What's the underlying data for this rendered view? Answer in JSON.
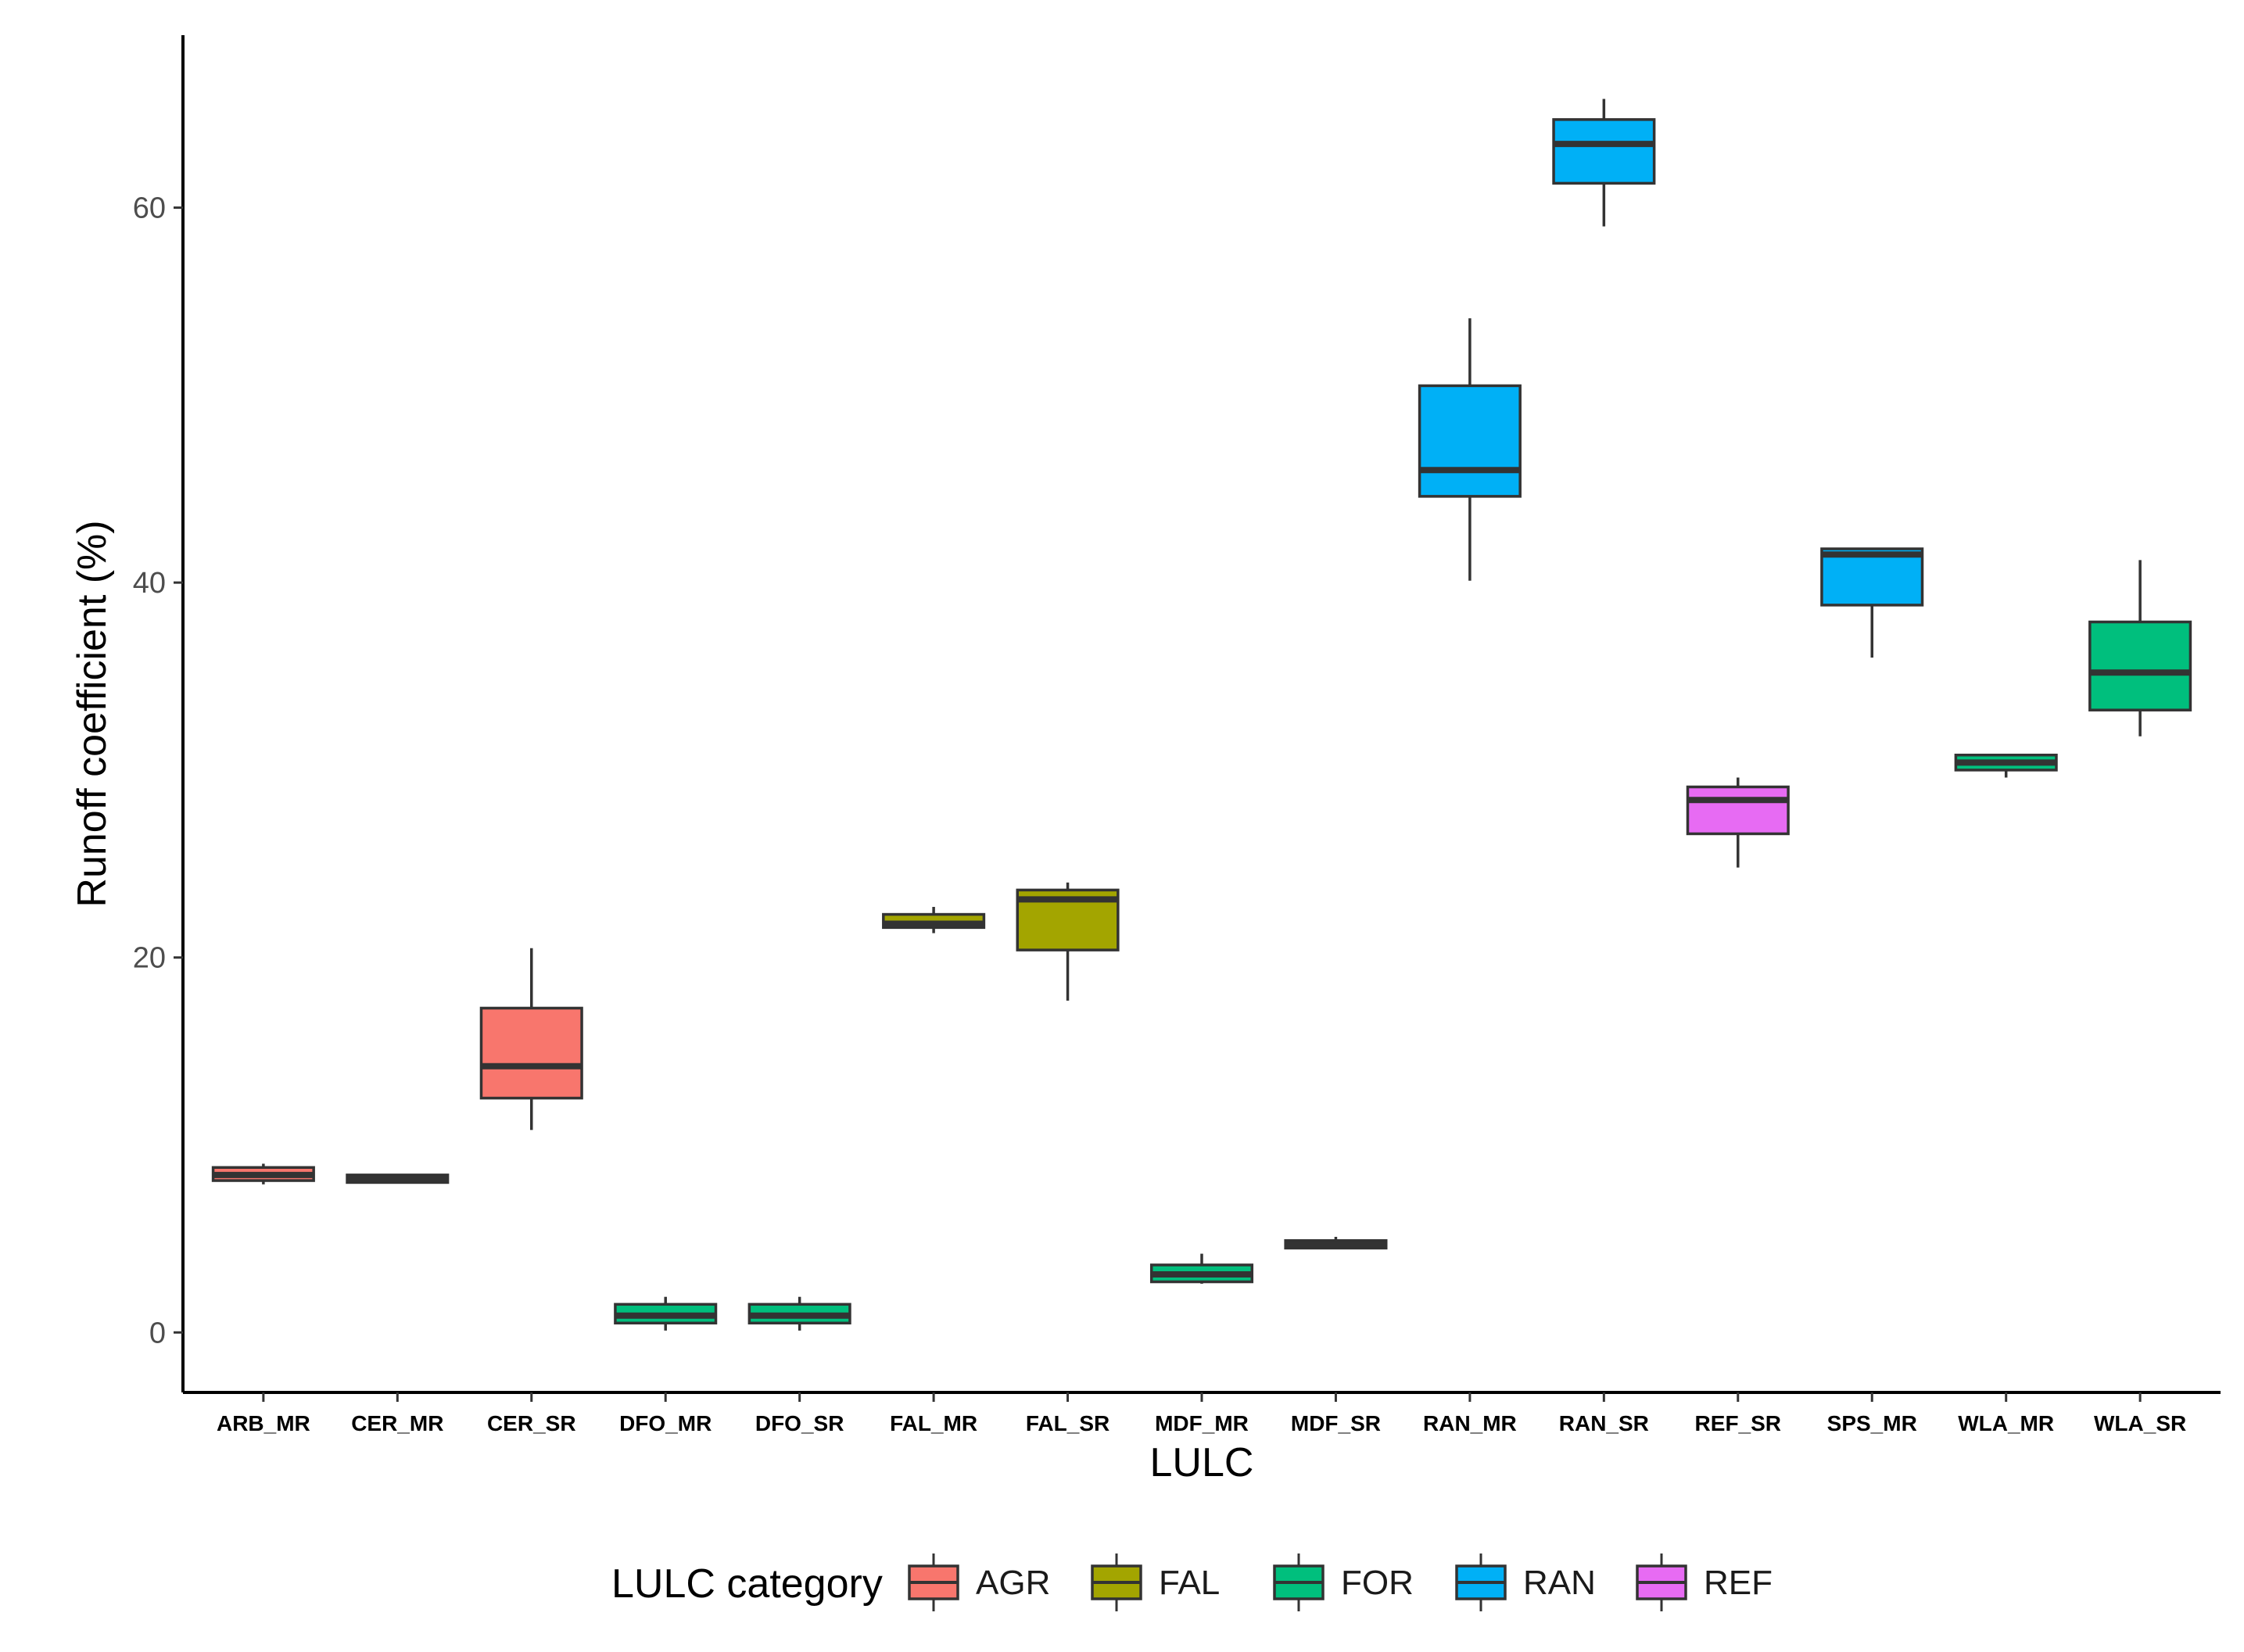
{
  "chart_data": {
    "type": "boxplot",
    "title": "",
    "xlabel": "LULC",
    "ylabel": "Runoff coefficient (%)",
    "ylim": [
      -3.2,
      69.2
    ],
    "yticks": [
      0,
      20,
      40,
      60
    ],
    "grid": false,
    "legend": {
      "title": "LULC category",
      "position": "bottom",
      "entries": [
        {
          "name": "AGR",
          "color": "#F8766D"
        },
        {
          "name": "FAL",
          "color": "#A3A500"
        },
        {
          "name": "FOR",
          "color": "#00BF7D"
        },
        {
          "name": "RAN",
          "color": "#00B0F6"
        },
        {
          "name": "REF",
          "color": "#E76BF3"
        }
      ]
    },
    "categories": [
      "ARB_MR",
      "CER_MR",
      "CER_SR",
      "DFO_MR",
      "DFO_SR",
      "FAL_MR",
      "FAL_SR",
      "MDF_MR",
      "MDF_SR",
      "RAN_MR",
      "RAN_SR",
      "REF_SR",
      "SPS_MR",
      "WLA_MR",
      "WLA_SR"
    ],
    "boxes": [
      {
        "label": "ARB_MR",
        "group": "AGR",
        "min": 7.9,
        "q1": 8.1,
        "median": 8.4,
        "q3": 8.8,
        "max": 9.0
      },
      {
        "label": "CER_MR",
        "group": "AGR",
        "min": 8.0,
        "q1": 8.0,
        "median": 8.2,
        "q3": 8.4,
        "max": 8.4
      },
      {
        "label": "CER_SR",
        "group": "AGR",
        "min": 10.8,
        "q1": 12.5,
        "median": 14.2,
        "q3": 17.3,
        "max": 20.5
      },
      {
        "label": "DFO_MR",
        "group": "FOR",
        "min": 0.1,
        "q1": 0.5,
        "median": 0.9,
        "q3": 1.5,
        "max": 1.9
      },
      {
        "label": "DFO_SR",
        "group": "FOR",
        "min": 0.1,
        "q1": 0.5,
        "median": 0.9,
        "q3": 1.5,
        "max": 1.9
      },
      {
        "label": "FAL_MR",
        "group": "FAL",
        "min": 21.3,
        "q1": 21.6,
        "median": 21.8,
        "q3": 22.3,
        "max": 22.7
      },
      {
        "label": "FAL_SR",
        "group": "FAL",
        "min": 17.7,
        "q1": 20.4,
        "median": 23.1,
        "q3": 23.6,
        "max": 24.0
      },
      {
        "label": "MDF_MR",
        "group": "FOR",
        "min": 2.6,
        "q1": 2.7,
        "median": 3.1,
        "q3": 3.6,
        "max": 4.2
      },
      {
        "label": "MDF_SR",
        "group": "FOR",
        "min": 4.5,
        "q1": 4.5,
        "median": 4.7,
        "q3": 4.9,
        "max": 5.1
      },
      {
        "label": "RAN_MR",
        "group": "RAN",
        "min": 40.1,
        "q1": 44.6,
        "median": 46.0,
        "q3": 50.5,
        "max": 54.1
      },
      {
        "label": "RAN_SR",
        "group": "RAN",
        "min": 59.0,
        "q1": 61.3,
        "median": 63.4,
        "q3": 64.7,
        "max": 65.8
      },
      {
        "label": "REF_SR",
        "group": "REF",
        "min": 24.8,
        "q1": 26.6,
        "median": 28.4,
        "q3": 29.1,
        "max": 29.6
      },
      {
        "label": "SPS_MR",
        "group": "RAN",
        "min": 36.0,
        "q1": 38.8,
        "median": 41.5,
        "q3": 41.8,
        "max": 41.8
      },
      {
        "label": "WLA_MR",
        "group": "FOR",
        "min": 29.6,
        "q1": 30.0,
        "median": 30.4,
        "q3": 30.8,
        "max": 30.8
      },
      {
        "label": "WLA_SR",
        "group": "FOR",
        "min": 31.8,
        "q1": 33.2,
        "median": 35.2,
        "q3": 37.9,
        "max": 41.2
      }
    ]
  }
}
